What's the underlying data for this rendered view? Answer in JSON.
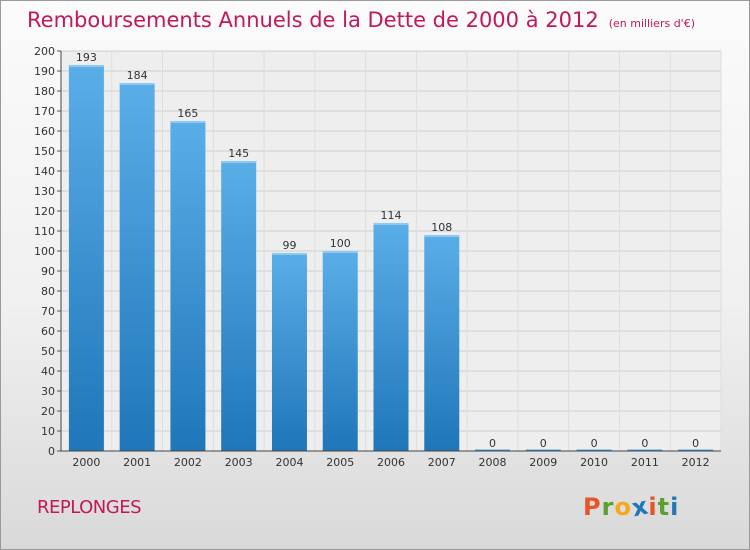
{
  "header": {
    "title": "Remboursements Annuels de la Dette de 2000 à 2012",
    "unit": "(en milliers d'€)"
  },
  "footer": {
    "commune": "REPLONGES",
    "logo": "Proxiti"
  },
  "colors": {
    "title": "#c2185b",
    "bar_top": "#5aaee8",
    "bar_bottom": "#1f76b8",
    "logo_letters": [
      "#e8552a",
      "#5aa02c",
      "#f5a81a",
      "#1f76b8",
      "#e8552a",
      "#5aa02c",
      "#1f76b8"
    ]
  },
  "chart_data": {
    "type": "bar",
    "title": "Remboursements Annuels de la Dette de 2000 à 2012",
    "xlabel": "",
    "ylabel": "",
    "categories": [
      "2000",
      "2001",
      "2002",
      "2003",
      "2004",
      "2005",
      "2006",
      "2007",
      "2008",
      "2009",
      "2010",
      "2011",
      "2012"
    ],
    "values": [
      193,
      184,
      165,
      145,
      99,
      100,
      114,
      108,
      0,
      0,
      0,
      0,
      0
    ],
    "data_labels": [
      "193",
      "184",
      "165",
      "145",
      "99",
      "100",
      "114",
      "108",
      "0",
      "0",
      "0",
      "0",
      "0"
    ],
    "ylim": [
      0,
      200
    ],
    "yticks": [
      0,
      10,
      20,
      30,
      40,
      50,
      60,
      70,
      80,
      90,
      100,
      110,
      120,
      130,
      140,
      150,
      160,
      170,
      180,
      190,
      200
    ],
    "grid": true,
    "legend": "none"
  }
}
